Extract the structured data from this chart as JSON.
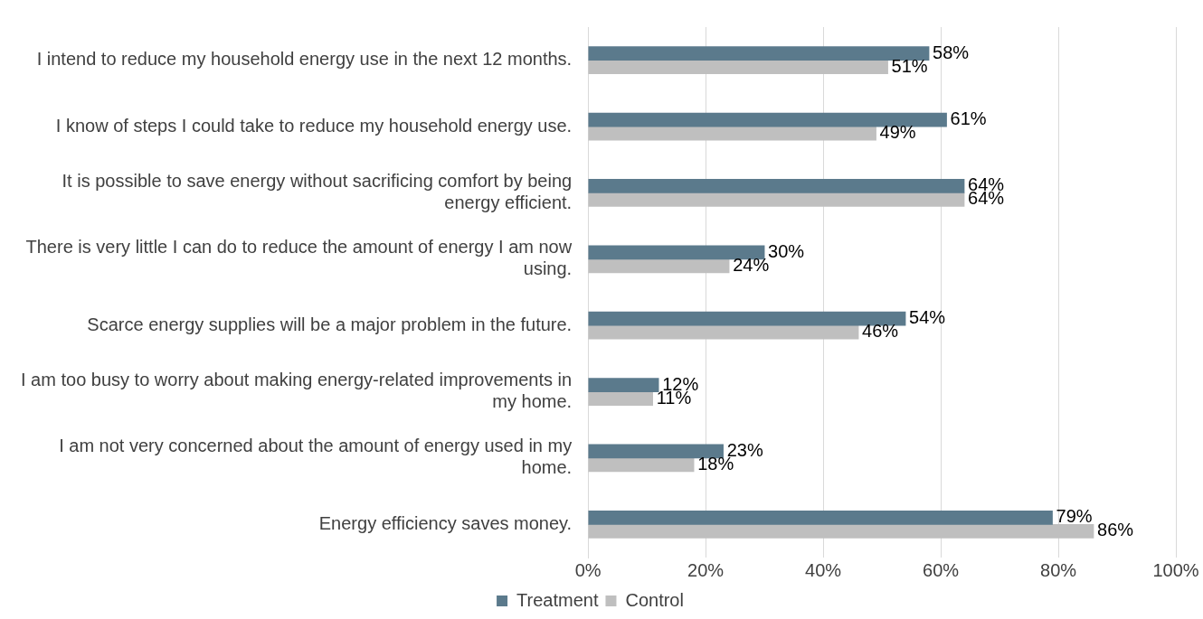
{
  "chart_data": {
    "type": "bar",
    "orientation": "horizontal",
    "categories": [
      "I intend to reduce my household energy use in the next 12 months.",
      "I know of steps I could take to reduce my household energy use.",
      "It is possible to save energy without sacrificing comfort by being energy efficient.",
      "There is very little I can do to reduce the amount of energy I am now using.",
      "Scarce energy supplies will be a major problem in the future.",
      "I am too busy to worry about making energy-related improvements in my home.",
      "I am not very concerned about the amount of energy used in my home.",
      "Energy efficiency saves money."
    ],
    "series": [
      {
        "name": "Treatment",
        "color": "#5b7a8c",
        "values": [
          58,
          61,
          64,
          30,
          54,
          12,
          23,
          79
        ],
        "value_labels": [
          "58%",
          "61%",
          "64%",
          "30%",
          "54%",
          "12%",
          "23%",
          "79%"
        ]
      },
      {
        "name": "Control",
        "color": "#bfbfbf",
        "values": [
          51,
          49,
          64,
          24,
          46,
          11,
          18,
          86
        ],
        "value_labels": [
          "51%",
          "49%",
          "64%",
          "24%",
          "46%",
          "11%",
          "18%",
          "86%"
        ]
      }
    ],
    "xlim": [
      0,
      100
    ],
    "xticks": [
      {
        "value": 0,
        "label": "0%"
      },
      {
        "value": 20,
        "label": "20%"
      },
      {
        "value": 40,
        "label": "40%"
      },
      {
        "value": 60,
        "label": "60%"
      },
      {
        "value": 80,
        "label": "80%"
      },
      {
        "value": 100,
        "label": "100%"
      }
    ],
    "grid": "x",
    "legend": "bottom"
  }
}
